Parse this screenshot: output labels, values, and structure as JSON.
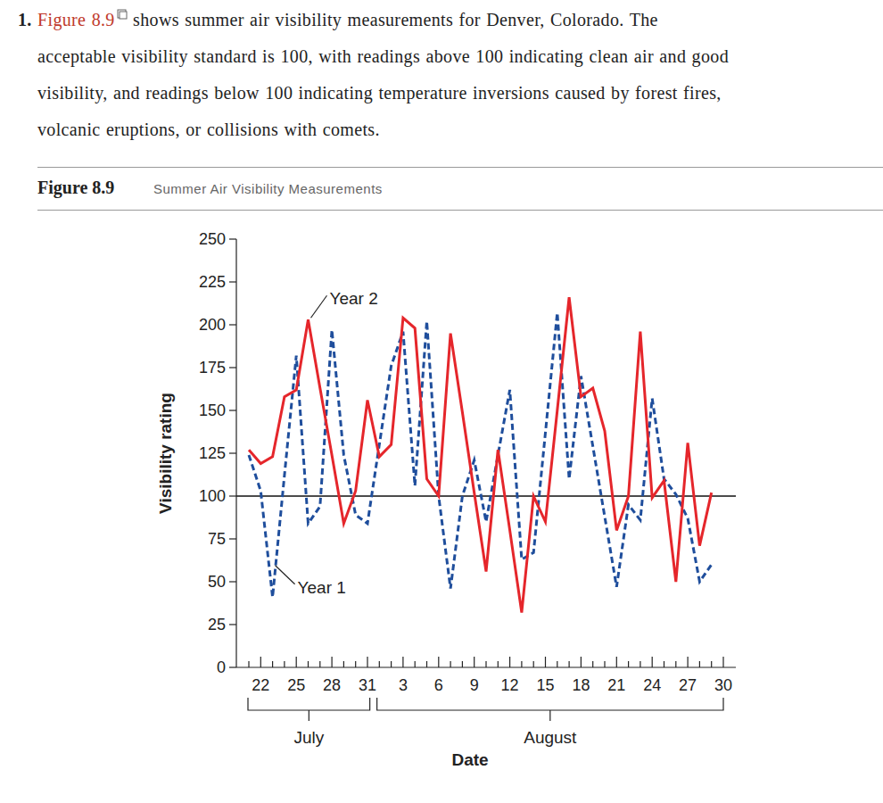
{
  "question": {
    "number": "1.",
    "link": "Figure 8.9",
    "lines": [
      " shows summer air visibility measurements for Denver, Colorado. The",
      "acceptable visibility standard is 100, with readings above 100 indicating clean air and good",
      "visibility, and readings below 100 indicating temperature inversions caused by forest fires,",
      "volcanic eruptions, or collisions with comets."
    ]
  },
  "figure": {
    "label": "Figure 8.9"
  },
  "chart_data": {
    "type": "line",
    "title": "Summer Air Visibility Measurements",
    "x_label": "Date",
    "y_label": "Visibility rating",
    "categories": [
      null,
      "22",
      null,
      null,
      "25",
      null,
      null,
      "28",
      null,
      null,
      "31",
      null,
      null,
      "3",
      null,
      null,
      "6",
      null,
      null,
      "9",
      null,
      null,
      "12",
      null,
      null,
      "15",
      null,
      null,
      "18",
      null,
      null,
      "21",
      null,
      null,
      "24",
      null,
      null,
      "27",
      null,
      null,
      "30"
    ],
    "month_groups": [
      {
        "label": "July",
        "start": 0,
        "end": 10
      },
      {
        "label": "August",
        "start": 11,
        "end": 40
      }
    ],
    "series": [
      {
        "name": "Year 1",
        "color": "#1f4e9c",
        "line_style": "dashed",
        "marker": "none",
        "values": [
          124,
          103,
          41,
          112,
          182,
          84,
          94,
          197,
          124,
          89,
          84,
          130,
          176,
          196,
          106,
          202,
          100,
          46,
          100,
          121,
          85,
          124,
          162,
          63,
          67,
          137,
          207,
          110,
          170,
          129,
          88,
          47,
          95,
          86,
          157,
          110,
          101,
          87,
          50,
          60,
          null
        ]
      },
      {
        "name": "Year 2",
        "color": "#e5262b",
        "line_style": "solid",
        "marker": "none",
        "values": [
          127,
          119,
          123,
          158,
          162,
          203,
          163,
          124,
          84,
          103,
          156,
          123,
          130,
          204,
          198,
          110,
          100,
          195,
          149,
          102,
          56,
          127,
          80,
          32,
          100,
          85,
          150,
          216,
          158,
          163,
          138,
          80,
          100,
          196,
          99,
          109,
          50,
          131,
          71,
          102,
          null
        ]
      }
    ],
    "ylim": [
      0,
      250
    ],
    "yticks": [
      0,
      25,
      50,
      75,
      100,
      125,
      150,
      175,
      200,
      225,
      250
    ],
    "standard": 100,
    "annotations": [
      {
        "text": "Year 2",
        "x": 5,
        "y": 203
      },
      {
        "text": "Year 1",
        "x": 2,
        "y": 60
      }
    ],
    "grid": false
  }
}
